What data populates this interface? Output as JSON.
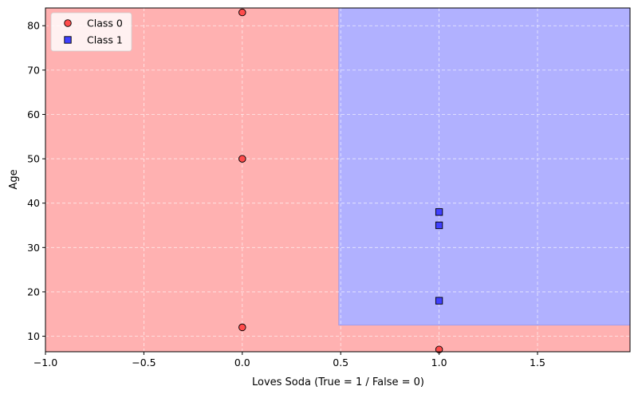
{
  "chart_data": {
    "type": "scatter",
    "title": "",
    "xlabel": "Loves Soda (True = 1 / False = 0)",
    "ylabel": "Age",
    "xlim": [
      -1.0,
      1.97
    ],
    "ylim": [
      6.5,
      84
    ],
    "x_ticks": [
      -1.0,
      -0.5,
      0.0,
      0.5,
      1.0,
      1.5
    ],
    "x_tick_labels": [
      "−1.0",
      "−0.5",
      "0.0",
      "0.5",
      "1.0",
      "1.5"
    ],
    "y_ticks": [
      10,
      20,
      30,
      40,
      50,
      60,
      70,
      80
    ],
    "y_tick_labels": [
      "10",
      "20",
      "30",
      "40",
      "50",
      "60",
      "70",
      "80"
    ],
    "grid": true,
    "legend_position": "top-left",
    "decision_regions": [
      {
        "class": "Class 0",
        "color": "#ffb1b1",
        "x_range": [
          -1.0,
          1.97
        ],
        "y_range": [
          6.5,
          84
        ]
      },
      {
        "class": "Class 1",
        "color": "#b1b1ff",
        "x_range": [
          0.49,
          1.97
        ],
        "y_range": [
          12.5,
          84
        ]
      }
    ],
    "series": [
      {
        "name": "Class 0",
        "marker": "circle",
        "color": "#ff4c4c",
        "points": [
          {
            "x": 0,
            "y": 83
          },
          {
            "x": 0,
            "y": 50
          },
          {
            "x": 0,
            "y": 12
          },
          {
            "x": 1,
            "y": 7
          }
        ]
      },
      {
        "name": "Class 1",
        "marker": "square",
        "color": "#4040ff",
        "points": [
          {
            "x": 1,
            "y": 38
          },
          {
            "x": 1,
            "y": 35
          },
          {
            "x": 1,
            "y": 18
          }
        ]
      }
    ]
  }
}
